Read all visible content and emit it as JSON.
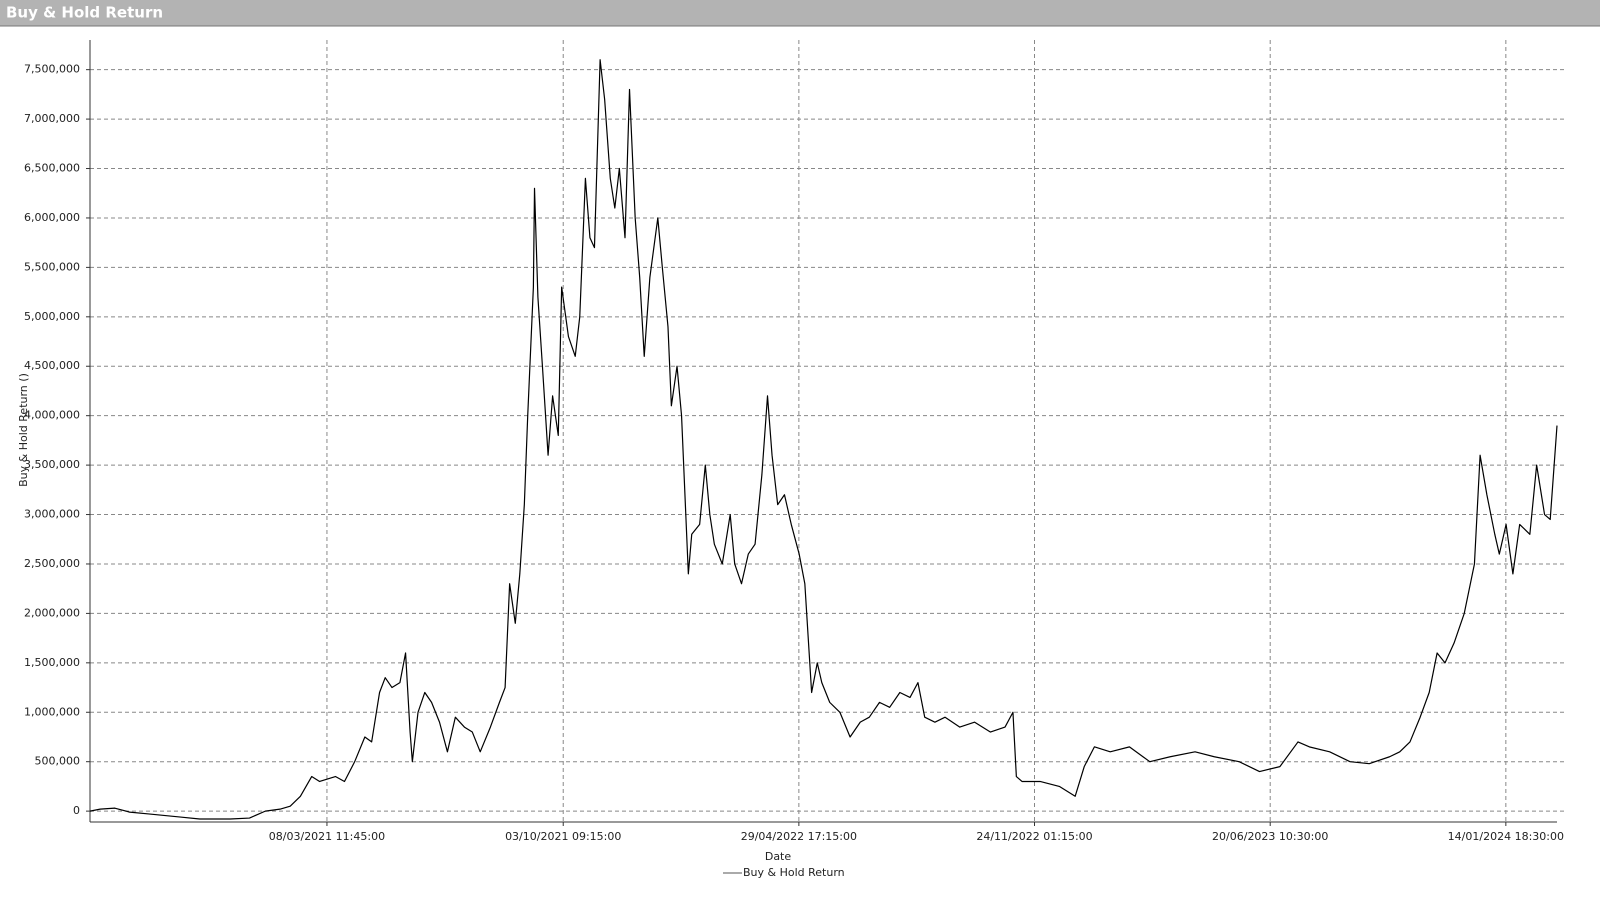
{
  "chart_data": {
    "type": "line",
    "title": "Buy & Hold Return",
    "x_label": "Date",
    "y_label": "Buy & Hold Return ()",
    "grid": true,
    "legend": "bottom",
    "x": [
      "2020-08-11",
      "2020-08-20",
      "2020-09-02",
      "2020-09-15",
      "2020-10-03",
      "2020-10-30",
      "2020-11-16",
      "2020-12-13",
      "2020-12-30",
      "2021-01-13",
      "2021-01-26",
      "2021-02-04",
      "2021-02-13",
      "2021-02-23",
      "2021-03-02",
      "2021-03-16",
      "2021-03-24",
      "2021-04-02",
      "2021-04-11",
      "2021-04-17",
      "2021-04-24",
      "2021-04-29",
      "2021-05-05",
      "2021-05-12",
      "2021-05-17",
      "2021-05-21",
      "2021-05-23",
      "2021-05-28",
      "2021-06-03",
      "2021-06-09",
      "2021-06-16",
      "2021-06-23",
      "2021-06-30",
      "2021-07-08",
      "2021-07-15",
      "2021-07-22",
      "2021-07-31",
      "2021-08-08",
      "2021-08-13",
      "2021-08-17",
      "2021-08-22",
      "2021-08-26",
      "2021-08-30",
      "2021-09-02",
      "2021-09-07",
      "2021-09-08",
      "2021-09-11",
      "2021-09-15",
      "2021-09-20",
      "2021-09-24",
      "2021-09-29",
      "2021-10-02",
      "2021-10-08",
      "2021-10-14",
      "2021-10-18",
      "2021-10-23",
      "2021-10-27",
      "2021-10-31",
      "2021-11-05",
      "2021-11-09",
      "2021-11-14",
      "2021-11-18",
      "2021-11-22",
      "2021-11-27",
      "2021-12-01",
      "2021-12-06",
      "2021-12-10",
      "2021-12-14",
      "2021-12-19",
      "2021-12-26",
      "2021-12-30",
      "2022-01-04",
      "2022-01-07",
      "2022-01-12",
      "2022-01-16",
      "2022-01-22",
      "2022-01-25",
      "2022-02-01",
      "2022-02-06",
      "2022-02-10",
      "2022-02-14",
      "2022-02-21",
      "2022-02-28",
      "2022-03-04",
      "2022-03-10",
      "2022-03-16",
      "2022-03-22",
      "2022-03-28",
      "2022-04-02",
      "2022-04-06",
      "2022-04-11",
      "2022-04-17",
      "2022-04-23",
      "2022-04-30",
      "2022-05-05",
      "2022-05-11",
      "2022-05-16",
      "2022-05-20",
      "2022-05-27",
      "2022-06-05",
      "2022-06-14",
      "2022-06-23",
      "2022-07-01",
      "2022-07-10",
      "2022-07-19",
      "2022-07-28",
      "2022-08-06",
      "2022-08-13",
      "2022-08-19",
      "2022-08-28",
      "2022-09-06",
      "2022-09-19",
      "2022-10-02",
      "2022-10-16",
      "2022-10-29",
      "2022-11-05",
      "2022-11-08",
      "2022-11-13",
      "2022-11-29",
      "2022-12-16",
      "2022-12-30",
      "2023-01-07",
      "2023-01-16",
      "2023-01-30",
      "2023-02-16",
      "2023-03-06",
      "2023-03-24",
      "2023-04-15",
      "2023-05-02",
      "2023-05-24",
      "2023-06-11",
      "2023-06-29",
      "2023-07-15",
      "2023-07-25",
      "2023-08-12",
      "2023-08-30",
      "2023-09-16",
      "2023-10-04",
      "2023-10-13",
      "2023-10-22",
      "2023-10-31",
      "2023-11-08",
      "2023-11-15",
      "2023-11-22",
      "2023-11-30",
      "2023-12-09",
      "2023-12-18",
      "2023-12-23",
      "2023-12-29",
      "2024-01-05",
      "2024-01-09",
      "2024-01-15",
      "2024-01-21",
      "2024-01-27",
      "2024-02-05",
      "2024-02-11",
      "2024-02-18",
      "2024-02-23",
      "2024-02-29"
    ],
    "series": [
      {
        "name": "Buy & Hold Return",
        "color": "#000000",
        "values": [
          0,
          20000,
          30000,
          -10000,
          -30000,
          -60000,
          -80000,
          -80000,
          -70000,
          0,
          20000,
          50000,
          150000,
          350000,
          300000,
          350000,
          300000,
          500000,
          750000,
          700000,
          1200000,
          1350000,
          1250000,
          1300000,
          1600000,
          800000,
          500000,
          1000000,
          1200000,
          1100000,
          900000,
          600000,
          950000,
          850000,
          800000,
          600000,
          850000,
          1100000,
          1250000,
          2300000,
          1900000,
          2400000,
          3100000,
          4000000,
          5300000,
          6300000,
          5200000,
          4500000,
          3600000,
          4200000,
          3800000,
          5300000,
          4800000,
          4600000,
          5000000,
          6400000,
          5800000,
          5700000,
          7600000,
          7200000,
          6400000,
          6100000,
          6500000,
          5800000,
          7300000,
          6000000,
          5400000,
          4600000,
          5400000,
          6000000,
          5500000,
          4900000,
          4100000,
          4500000,
          4000000,
          2400000,
          2800000,
          2900000,
          3500000,
          3000000,
          2700000,
          2500000,
          3000000,
          2500000,
          2300000,
          2600000,
          2700000,
          3400000,
          4200000,
          3600000,
          3100000,
          3200000,
          2900000,
          2600000,
          2300000,
          1200000,
          1500000,
          1300000,
          1100000,
          1000000,
          750000,
          900000,
          950000,
          1100000,
          1050000,
          1200000,
          1150000,
          1300000,
          950000,
          900000,
          950000,
          850000,
          900000,
          800000,
          850000,
          1000000,
          350000,
          300000,
          300000,
          250000,
          150000,
          450000,
          650000,
          600000,
          650000,
          500000,
          550000,
          600000,
          550000,
          500000,
          400000,
          450000,
          700000,
          650000,
          600000,
          500000,
          480000,
          550000,
          600000,
          700000,
          950000,
          1200000,
          1600000,
          1500000,
          1700000,
          2000000,
          2500000,
          3600000,
          3200000,
          2800000,
          2600000,
          2900000,
          2400000,
          2900000,
          2800000,
          3500000,
          3000000,
          2950000,
          3900000
        ]
      }
    ],
    "xlim": [
      "2020-08-11",
      "2024-02-29"
    ],
    "xticks": [
      {
        "value": "2021-03-08T11:45",
        "label": "08/03/2021 11:45:00"
      },
      {
        "value": "2021-10-03T09:15",
        "label": "03/10/2021 09:15:00"
      },
      {
        "value": "2022-04-29T17:15",
        "label": "29/04/2022 17:15:00"
      },
      {
        "value": "2022-11-24T01:15",
        "label": "24/11/2022 01:15:00"
      },
      {
        "value": "2023-06-20T10:30",
        "label": "20/06/2023 10:30:00"
      },
      {
        "value": "2024-01-14T18:30",
        "label": "14/01/2024 18:30:00"
      }
    ],
    "ylim": [
      -110000,
      7800000
    ],
    "yticks": [
      0,
      {
        "value": 500000,
        "label": "500,000"
      },
      {
        "value": 1000000,
        "label": "1,000,000"
      },
      {
        "value": 1500000,
        "label": "1,500,000"
      },
      {
        "value": 2000000,
        "label": "2,000,000"
      },
      {
        "value": 2500000,
        "label": "2,500,000"
      },
      {
        "value": 3000000,
        "label": "3,000,000"
      },
      {
        "value": 3500000,
        "label": "3,500,000"
      },
      {
        "value": 4000000,
        "label": "4,000,000"
      },
      {
        "value": 4500000,
        "label": "4,500,000"
      },
      {
        "value": 5000000,
        "label": "5,000,000"
      },
      {
        "value": 5500000,
        "label": "5,500,000"
      },
      {
        "value": 6000000,
        "label": "6,000,000"
      },
      {
        "value": 6500000,
        "label": "6,500,000"
      },
      {
        "value": 7000000,
        "label": "7,000,000"
      },
      {
        "value": 7500000,
        "label": "7,500,000"
      }
    ]
  }
}
